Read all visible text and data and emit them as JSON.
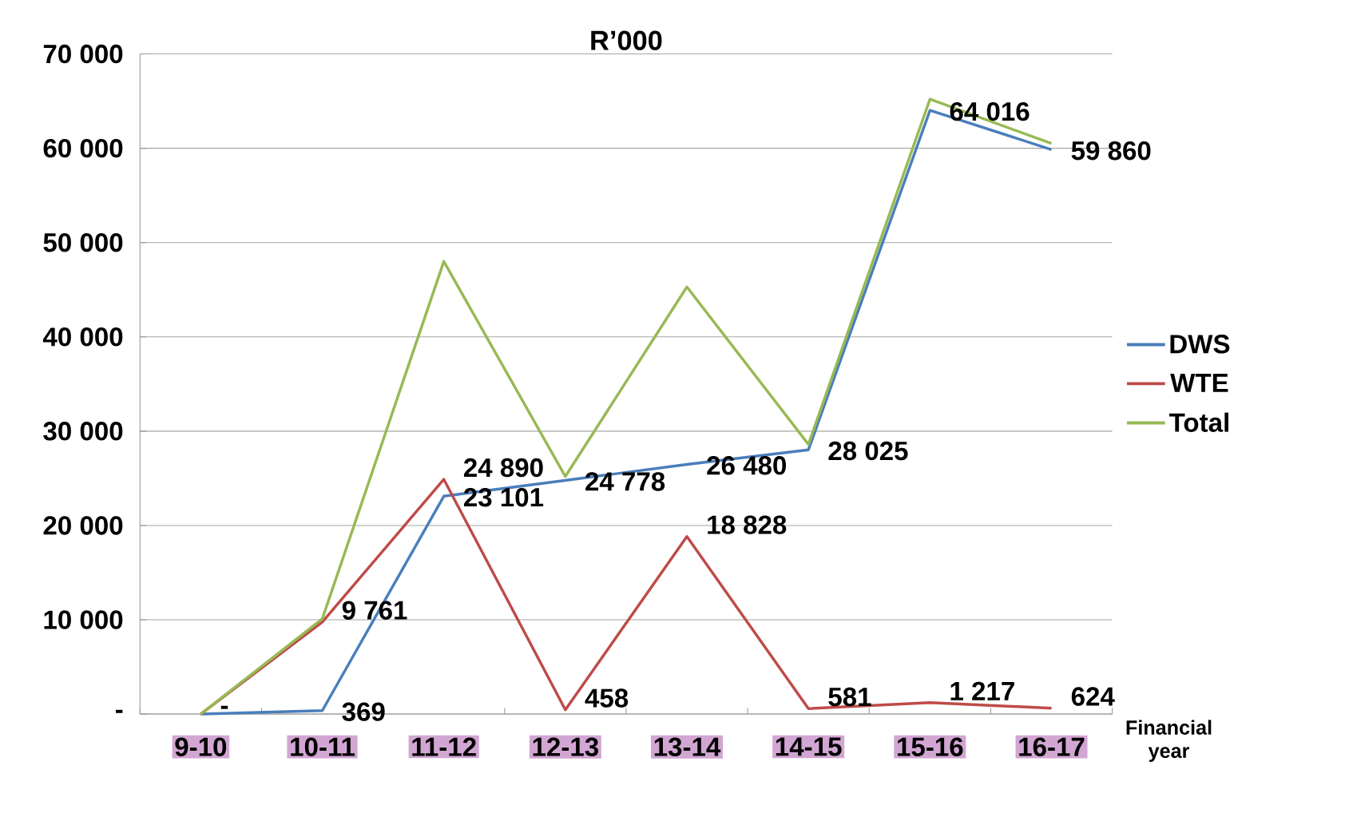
{
  "chart_data": {
    "type": "line",
    "title": "R’000",
    "xlabel": "Financial year",
    "categories": [
      "9-10",
      "10-11",
      "11-12",
      "12-13",
      "13-14",
      "14-15",
      "15-16",
      "16-17"
    ],
    "series": [
      {
        "name": "DWS",
        "color": "#4a7ebb",
        "values": [
          0,
          369,
          23101,
          24778,
          26480,
          28025,
          64016,
          59860
        ],
        "value_labels": [
          "-",
          "369",
          "23 101",
          "24 778",
          "26 480",
          "28 025",
          "64 016",
          "59 860"
        ]
      },
      {
        "name": "WTE",
        "color": "#be4b48",
        "values": [
          0,
          9761,
          24890,
          458,
          18828,
          581,
          1217,
          624
        ],
        "value_labels": [
          null,
          "9 761",
          "24 890",
          "458",
          "18 828",
          "581",
          "1 217",
          "624"
        ]
      },
      {
        "name": "Total",
        "color": "#98b954",
        "values": [
          0,
          10100,
          48000,
          25200,
          45300,
          28600,
          65200,
          60500
        ]
      }
    ],
    "ylim": [
      0,
      70000
    ],
    "yticks": [
      {
        "value": 0,
        "label": "-"
      },
      {
        "value": 10000,
        "label": "10 000"
      },
      {
        "value": 20000,
        "label": "20 000"
      },
      {
        "value": 30000,
        "label": "30 000"
      },
      {
        "value": 40000,
        "label": "40 000"
      },
      {
        "value": 50000,
        "label": "50 000"
      },
      {
        "value": 60000,
        "label": "60 000"
      },
      {
        "value": 70000,
        "label": "70 000"
      }
    ],
    "grid": "y",
    "legend": "right",
    "marker": "none",
    "line_style": "solid"
  }
}
